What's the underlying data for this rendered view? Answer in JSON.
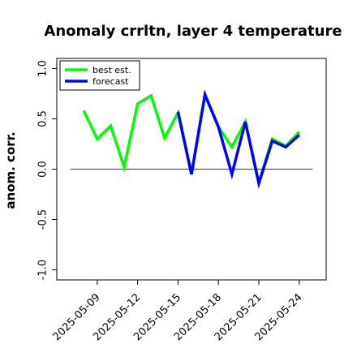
{
  "chart_data": {
    "type": "line",
    "title": "Anomaly crrltn, layer 4 temperature",
    "ylabel": "anom. corr.",
    "x": [
      "2025-05-08",
      "2025-05-09",
      "2025-05-10",
      "2025-05-11",
      "2025-05-12",
      "2025-05-13",
      "2025-05-14",
      "2025-05-15",
      "2025-05-16",
      "2025-05-17",
      "2025-05-18",
      "2025-05-19",
      "2025-05-20",
      "2025-05-21",
      "2025-05-22",
      "2025-05-23",
      "2025-05-24"
    ],
    "series": [
      {
        "name": "best est.",
        "color": "#00ff00",
        "values": [
          0.58,
          0.3,
          0.43,
          0.02,
          0.65,
          0.73,
          0.31,
          0.56,
          -0.05,
          0.74,
          0.42,
          0.22,
          0.47,
          -0.14,
          0.3,
          0.23,
          0.37
        ]
      },
      {
        "name": "forecast",
        "color": "#0000ff",
        "values": [
          null,
          null,
          null,
          null,
          null,
          null,
          null,
          0.57,
          -0.05,
          0.74,
          0.42,
          -0.05,
          0.47,
          -0.14,
          0.28,
          0.22,
          0.34
        ]
      }
    ],
    "hline": {
      "y": 0,
      "x": [
        "2025-05-07",
        "2025-05-25"
      ],
      "color": "#555555"
    },
    "xlim": [
      "2025-05-06",
      "2025-05-26"
    ],
    "xticks": [
      "2025-05-09",
      "2025-05-12",
      "2025-05-15",
      "2025-05-18",
      "2025-05-21",
      "2025-05-24"
    ],
    "xtick_label_colors": [
      "#000000",
      "#000000",
      "#008000",
      "#000000",
      "#000000",
      "#000000"
    ],
    "ylim": [
      -1.1,
      1.1
    ],
    "yticks": [
      {
        "value": -1,
        "label": "-1.0"
      },
      {
        "value": -0.5,
        "label": "-0.5"
      },
      {
        "value": 0,
        "label": "0.0"
      },
      {
        "value": 0.5,
        "label": "0.5"
      },
      {
        "value": 1,
        "label": "1.0"
      }
    ],
    "legend": "upper left"
  }
}
